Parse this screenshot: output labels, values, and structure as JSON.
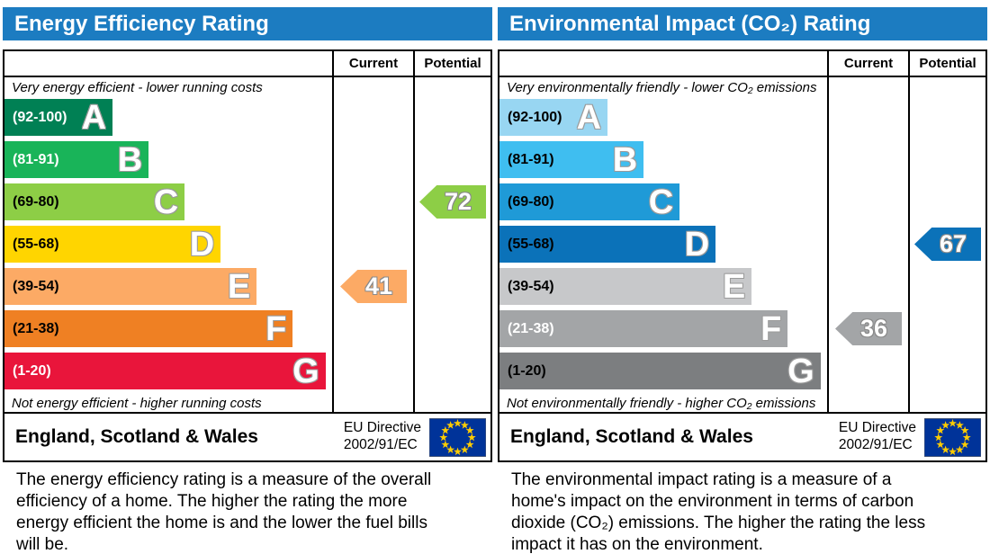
{
  "accent": {
    "header_blue": "#1c7cc1",
    "border_black": "#000000",
    "eu_flag_blue": "#003399",
    "eu_star_yellow": "#ffcc00"
  },
  "panels": [
    {
      "title": "Energy Efficiency Rating",
      "columns": {
        "current": "Current",
        "potential": "Potential"
      },
      "top_caption": "Very energy efficient - lower running costs",
      "bottom_caption": "Not energy efficient - higher running costs",
      "bands": [
        {
          "letter": "A",
          "range": "(92-100)",
          "color": "#008054",
          "label_color": "#ffffff",
          "width": "33%"
        },
        {
          "letter": "B",
          "range": "(81-91)",
          "color": "#19b459",
          "label_color": "#ffffff",
          "width": "44%"
        },
        {
          "letter": "C",
          "range": "(69-80)",
          "color": "#8dce46",
          "label_color": "#000000",
          "width": "55%"
        },
        {
          "letter": "D",
          "range": "(55-68)",
          "color": "#ffd500",
          "label_color": "#000000",
          "width": "66%"
        },
        {
          "letter": "E",
          "range": "(39-54)",
          "color": "#fcaa65",
          "label_color": "#000000",
          "width": "77%"
        },
        {
          "letter": "F",
          "range": "(21-38)",
          "color": "#ef8023",
          "label_color": "#000000",
          "width": "88%"
        },
        {
          "letter": "G",
          "range": "(1-20)",
          "color": "#e9153b",
          "label_color": "#ffffff",
          "width": "98%"
        }
      ],
      "current": {
        "value": "41",
        "color": "#fcaa65"
      },
      "potential": {
        "value": "72",
        "color": "#8dce46"
      },
      "footer": {
        "region": "England, Scotland & Wales",
        "directive_line1": "EU Directive",
        "directive_line2": "2002/91/EC"
      },
      "description": "The energy efficiency rating is a measure of the overall efficiency of a home. The higher the rating the more energy efficient the home is and the lower the fuel bills will be."
    },
    {
      "title": "Environmental Impact (CO₂) Rating",
      "columns": {
        "current": "Current",
        "potential": "Potential"
      },
      "top_caption": "Very environmentally friendly - lower CO₂ emissions",
      "bottom_caption": "Not environmentally friendly - higher CO₂ emissions",
      "bands": [
        {
          "letter": "A",
          "range": "(92-100)",
          "color": "#98d6f2",
          "label_color": "#000000",
          "width": "33%"
        },
        {
          "letter": "B",
          "range": "(81-91)",
          "color": "#3fbef0",
          "label_color": "#000000",
          "width": "44%"
        },
        {
          "letter": "C",
          "range": "(69-80)",
          "color": "#1f9ad7",
          "label_color": "#000000",
          "width": "55%"
        },
        {
          "letter": "D",
          "range": "(55-68)",
          "color": "#0b72b9",
          "label_color": "#000000",
          "width": "66%"
        },
        {
          "letter": "E",
          "range": "(39-54)",
          "color": "#c7c8ca",
          "label_color": "#000000",
          "width": "77%"
        },
        {
          "letter": "F",
          "range": "(21-38)",
          "color": "#a3a5a7",
          "label_color": "#ffffff",
          "width": "88%"
        },
        {
          "letter": "G",
          "range": "(1-20)",
          "color": "#7c7e80",
          "label_color": "#000000",
          "width": "98%"
        }
      ],
      "current": {
        "value": "36",
        "color": "#a3a5a7"
      },
      "potential": {
        "value": "67",
        "color": "#0b72b9"
      },
      "footer": {
        "region": "England, Scotland & Wales",
        "directive_line1": "EU Directive",
        "directive_line2": "2002/91/EC"
      },
      "description": "The environmental impact rating is a measure of a home's impact on the environment in terms of carbon dioxide (CO₂) emissions. The higher the rating the less impact it has on the environment."
    }
  ],
  "chart_data": [
    {
      "type": "bar",
      "title": "Energy Efficiency Rating",
      "categories": [
        "A",
        "B",
        "C",
        "D",
        "E",
        "F",
        "G"
      ],
      "tick_labels": [
        "(92-100)",
        "(81-91)",
        "(69-80)",
        "(55-68)",
        "(39-54)",
        "(21-38)",
        "(1-20)"
      ],
      "values": [
        33,
        44,
        55,
        66,
        77,
        88,
        98
      ],
      "ylabel": "relative band length (% of chart width)",
      "annotations": {
        "current": 41,
        "current_band": "E",
        "potential": 72,
        "potential_band": "C"
      },
      "legend_position": "columns right: Current, Potential"
    },
    {
      "type": "bar",
      "title": "Environmental Impact (CO₂) Rating",
      "categories": [
        "A",
        "B",
        "C",
        "D",
        "E",
        "F",
        "G"
      ],
      "tick_labels": [
        "(92-100)",
        "(81-91)",
        "(69-80)",
        "(55-68)",
        "(39-54)",
        "(21-38)",
        "(1-20)"
      ],
      "values": [
        33,
        44,
        55,
        66,
        77,
        88,
        98
      ],
      "ylabel": "relative band length (% of chart width)",
      "annotations": {
        "current": 36,
        "current_band": "F",
        "potential": 67,
        "potential_band": "D"
      },
      "legend_position": "columns right: Current, Potential"
    }
  ]
}
